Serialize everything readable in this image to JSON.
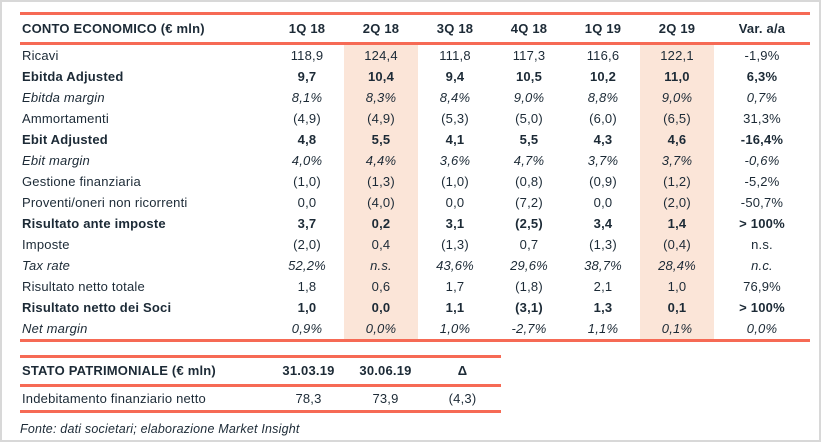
{
  "colors": {
    "accent_rule": "#f66a55",
    "column_highlight": "#fbe5d8",
    "text": "#1c2a36",
    "frame_border": "#d8d8d8",
    "background": "#ffffff"
  },
  "income_table": {
    "title": "CONTO ECONOMICO (€ mln)",
    "columns": [
      "1Q 18",
      "2Q 18",
      "3Q 18",
      "4Q 18",
      "1Q 19",
      "2Q 19",
      "Var. a/a"
    ],
    "highlight_columns": [
      1,
      5
    ],
    "rows": [
      {
        "label": "Ricavi",
        "style": "normal",
        "values": [
          "118,9",
          "124,4",
          "111,8",
          "117,3",
          "116,6",
          "122,1",
          "-1,9%"
        ]
      },
      {
        "label": "Ebitda Adjusted",
        "style": "bold",
        "values": [
          "9,7",
          "10,4",
          "9,4",
          "10,5",
          "10,2",
          "11,0",
          "6,3%"
        ]
      },
      {
        "label": "Ebitda margin",
        "style": "italic",
        "values": [
          "8,1%",
          "8,3%",
          "8,4%",
          "9,0%",
          "8,8%",
          "9,0%",
          "0,7%"
        ]
      },
      {
        "label": "Ammortamenti",
        "style": "normal",
        "values": [
          "(4,9)",
          "(4,9)",
          "(5,3)",
          "(5,0)",
          "(6,0)",
          "(6,5)",
          "31,3%"
        ]
      },
      {
        "label": "Ebit Adjusted",
        "style": "bold",
        "values": [
          "4,8",
          "5,5",
          "4,1",
          "5,5",
          "4,3",
          "4,6",
          "-16,4%"
        ]
      },
      {
        "label": "Ebit margin",
        "style": "italic",
        "values": [
          "4,0%",
          "4,4%",
          "3,6%",
          "4,7%",
          "3,7%",
          "3,7%",
          "-0,6%"
        ]
      },
      {
        "label": "Gestione finanziaria",
        "style": "normal",
        "values": [
          "(1,0)",
          "(1,3)",
          "(1,0)",
          "(0,8)",
          "(0,9)",
          "(1,2)",
          "-5,2%"
        ]
      },
      {
        "label": "Proventi/oneri non ricorrenti",
        "style": "normal",
        "values": [
          "0,0",
          "(4,0)",
          "0,0",
          "(7,2)",
          "0,0",
          "(2,0)",
          "-50,7%"
        ]
      },
      {
        "label": "Risultato ante imposte",
        "style": "bold",
        "values": [
          "3,7",
          "0,2",
          "3,1",
          "(2,5)",
          "3,4",
          "1,4",
          "> 100%"
        ]
      },
      {
        "label": "Imposte",
        "style": "normal",
        "values": [
          "(2,0)",
          "0,4",
          "(1,3)",
          "0,7",
          "(1,3)",
          "(0,4)",
          "n.s."
        ]
      },
      {
        "label": "Tax rate",
        "style": "italic",
        "values": [
          "52,2%",
          "n.s.",
          "43,6%",
          "29,6%",
          "38,7%",
          "28,4%",
          "n.c."
        ]
      },
      {
        "label": "Risultato netto totale",
        "style": "normal",
        "values": [
          "1,8",
          "0,6",
          "1,7",
          "(1,8)",
          "2,1",
          "1,0",
          "76,9%"
        ]
      },
      {
        "label": "Risultato netto dei Soci",
        "style": "bold",
        "values": [
          "1,0",
          "0,0",
          "1,1",
          "(3,1)",
          "1,3",
          "0,1",
          "> 100%"
        ]
      },
      {
        "label": "Net margin",
        "style": "italic",
        "values": [
          "0,9%",
          "0,0%",
          "1,0%",
          "-2,7%",
          "1,1%",
          "0,1%",
          "0,0%"
        ]
      }
    ]
  },
  "balance_table": {
    "title": "STATO PATRIMONIALE (€ mln)",
    "columns": [
      "31.03.19",
      "30.06.19",
      "Δ"
    ],
    "highlight_columns": [],
    "rows": [
      {
        "label": "Indebitamento finanziario netto",
        "style": "normal",
        "values": [
          "78,3",
          "73,9",
          "(4,3)"
        ]
      }
    ]
  },
  "footer": {
    "source_note": "Fonte: dati societari; elaborazione Market Insight"
  }
}
